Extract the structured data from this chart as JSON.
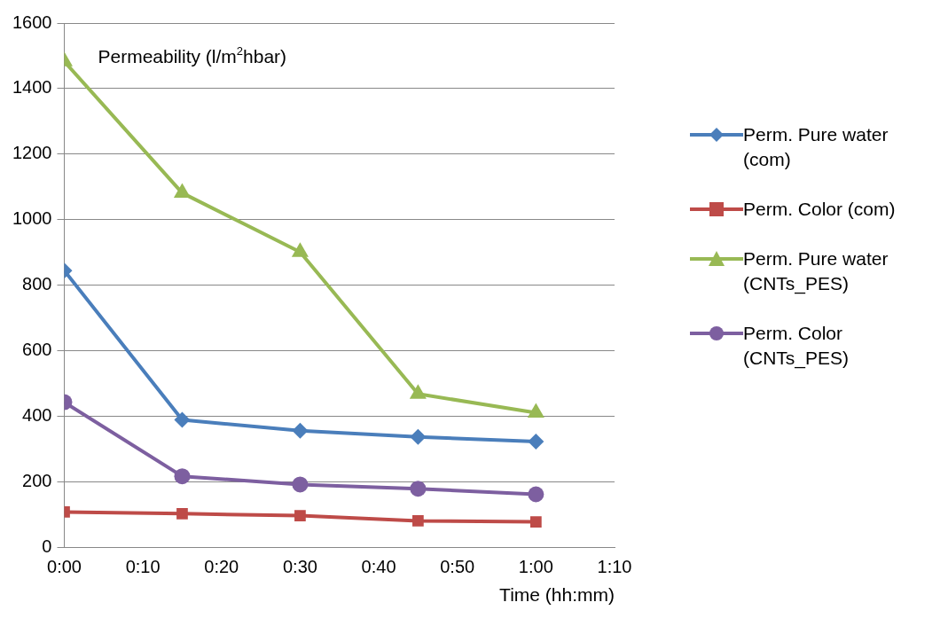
{
  "chart_data": {
    "type": "line",
    "ylabel": "Permeability (l/m$^{2}$hbar)",
    "xlabel": "Time (hh:mm)",
    "x": [
      0,
      0.25,
      0.5,
      0.75,
      1
    ],
    "xlim": [
      0,
      1.1667
    ],
    "xticks": [
      {
        "value": 0,
        "label": "0:00"
      },
      {
        "value": 0.1667,
        "label": "0:10"
      },
      {
        "value": 0.3333,
        "label": "0:20"
      },
      {
        "value": 0.5,
        "label": "0:30"
      },
      {
        "value": 0.6667,
        "label": "0:40"
      },
      {
        "value": 0.8333,
        "label": "0:50"
      },
      {
        "value": 1,
        "label": "1:00"
      },
      {
        "value": 1.1667,
        "label": "1:10"
      }
    ],
    "ylim": [
      0,
      1600
    ],
    "yticks": [
      0,
      200,
      400,
      600,
      800,
      1000,
      1200,
      1400,
      1600
    ],
    "grid": "y",
    "legend": "right",
    "series": [
      {
        "name": "Perm. Pure water (com)",
        "color": "#4a7ebb",
        "marker": "diamond",
        "values": [
          845,
          390,
          357,
          338,
          324
        ]
      },
      {
        "name": "Perm. Color (com)",
        "color": "#be4b48",
        "marker": "square",
        "values": [
          109,
          104,
          98,
          82,
          79
        ]
      },
      {
        "name": "Perm. Pure water (CNTs_PES)",
        "color": "#98b954",
        "marker": "triangle",
        "values": [
          1483,
          1082,
          902,
          469,
          412
        ]
      },
      {
        "name": "Perm. Color (CNTs_PES)",
        "color": "#7d5fa0",
        "marker": "circle",
        "values": [
          444,
          218,
          193,
          180,
          163
        ]
      }
    ]
  }
}
